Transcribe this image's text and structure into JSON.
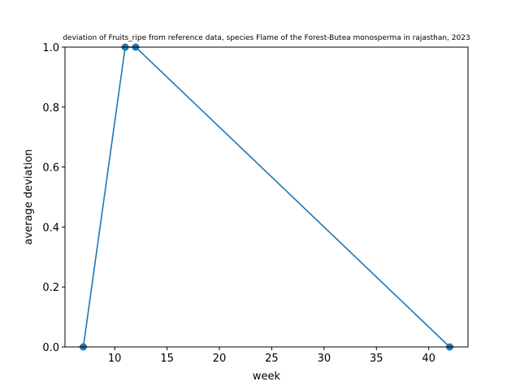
{
  "chart_data": {
    "type": "line",
    "title": "deviation of Fruits_ripe from reference data, species Flame of the Forest-Butea monosperma in rajasthan, 2023",
    "xlabel": "week",
    "ylabel": "average deviation",
    "xlim": [
      5.25,
      43.75
    ],
    "ylim": [
      0,
      1
    ],
    "x_ticks": [
      10,
      15,
      20,
      25,
      30,
      35,
      40
    ],
    "x_tick_labels": [
      "10",
      "15",
      "20",
      "25",
      "30",
      "35",
      "40"
    ],
    "y_ticks": [
      0.0,
      0.2,
      0.4,
      0.6,
      0.8,
      1.0
    ],
    "y_tick_labels": [
      "0.0",
      "0.2",
      "0.4",
      "0.6",
      "0.8",
      "1.0"
    ],
    "grid": false,
    "series": [
      {
        "x": [
          7,
          11,
          12,
          42
        ],
        "y": [
          0.0,
          1.0,
          1.0,
          0.0
        ],
        "color": "#1f77b4",
        "marker": "circle"
      }
    ],
    "highlight_color": "#d62728"
  }
}
